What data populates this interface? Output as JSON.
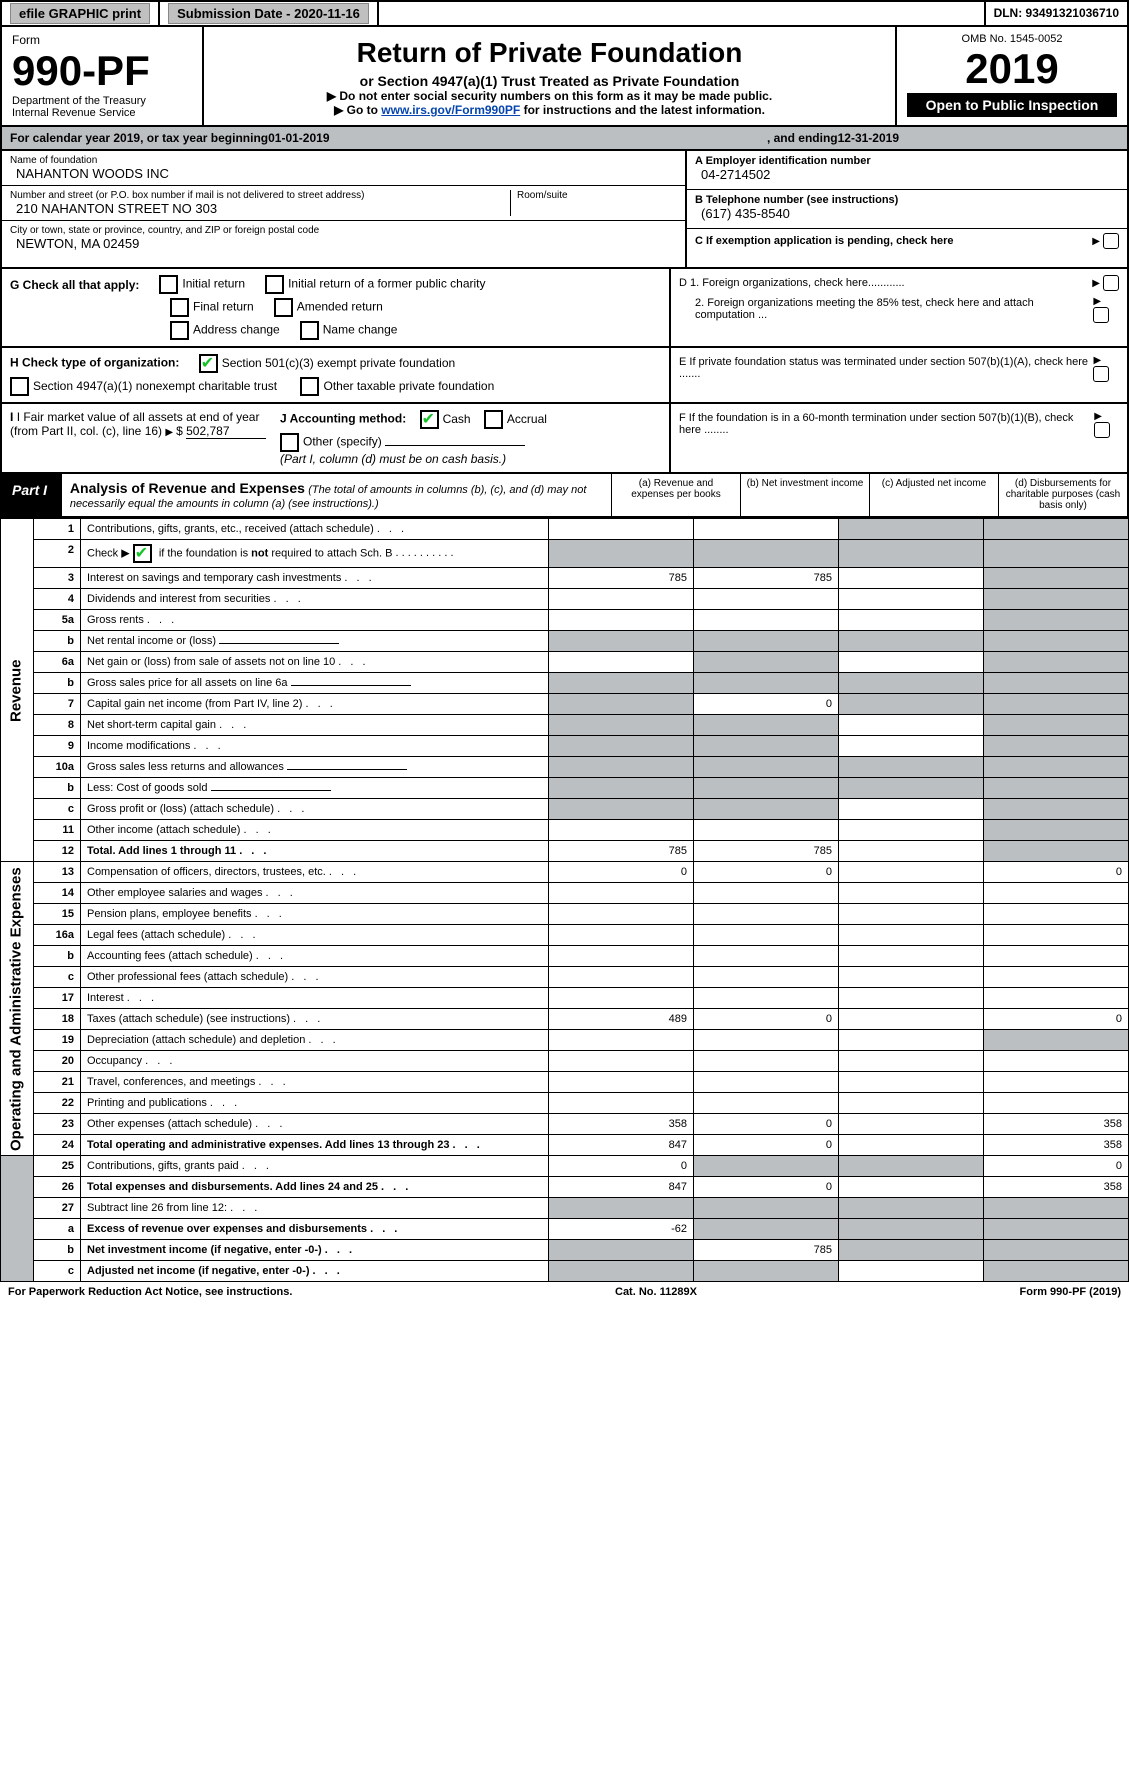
{
  "top_bar": {
    "efile": "efile GRAPHIC print",
    "submission": "Submission Date - 2020-11-16",
    "dln": "DLN: 93491321036710"
  },
  "header": {
    "form_label": "Form",
    "form_no": "990-PF",
    "dept": "Department of the Treasury",
    "irs": "Internal Revenue Service",
    "title": "Return of Private Foundation",
    "subtitle": "or Section 4947(a)(1) Trust Treated as Private Foundation",
    "note1": "▶ Do not enter social security numbers on this form as it may be made public.",
    "note2_prefix": "▶ Go to ",
    "note2_link": "www.irs.gov/Form990PF",
    "note2_suffix": " for instructions and the latest information.",
    "omb": "OMB No. 1545-0052",
    "year": "2019",
    "open_pub": "Open to Public Inspection"
  },
  "cal_year": {
    "prefix": "For calendar year 2019, or tax year beginning ",
    "begin": "01-01-2019",
    "mid": " , and ending ",
    "end": "12-31-2019"
  },
  "id": {
    "name_lbl": "Name of foundation",
    "name": "NAHANTON WOODS INC",
    "addr_lbl": "Number and street (or P.O. box number if mail is not delivered to street address)",
    "room_lbl": "Room/suite",
    "addr": "210 NAHANTON STREET NO 303",
    "city_lbl": "City or town, state or province, country, and ZIP or foreign postal code",
    "city": "NEWTON, MA  02459",
    "a_lbl": "A Employer identification number",
    "a_val": "04-2714502",
    "b_lbl": "B Telephone number (see instructions)",
    "b_val": "(617) 435-8540",
    "c_lbl": "C If exemption application is pending, check here"
  },
  "checks": {
    "g_lbl": "G Check all that apply:",
    "g_opts": [
      "Initial return",
      "Initial return of a former public charity",
      "Final return",
      "Amended return",
      "Address change",
      "Name change"
    ],
    "h_lbl": "H Check type of organization:",
    "h_opts": [
      "Section 501(c)(3) exempt private foundation",
      "Section 4947(a)(1) nonexempt charitable trust",
      "Other taxable private foundation"
    ],
    "i_lbl": "I Fair market value of all assets at end of year (from Part II, col. (c), line 16)",
    "i_val": "502,787",
    "j_lbl": "J Accounting method:",
    "j_opts": [
      "Cash",
      "Accrual",
      "Other (specify)"
    ],
    "j_note": "(Part I, column (d) must be on cash basis.)",
    "d1": "D 1. Foreign organizations, check here............",
    "d2": "2. Foreign organizations meeting the 85% test, check here and attach computation ...",
    "e": "E  If private foundation status was terminated under section 507(b)(1)(A), check here .......",
    "f": "F  If the foundation is in a 60-month termination under section 507(b)(1)(B), check here ........"
  },
  "part1": {
    "title": "Part I",
    "heading": "Analysis of Revenue and Expenses",
    "heading_note": "(The total of amounts in columns (b), (c), and (d) may not necessarily equal the amounts in column (a) (see instructions).)",
    "col_a": "(a)  Revenue and expenses per books",
    "col_b": "(b)  Net investment income",
    "col_c": "(c)  Adjusted net income",
    "col_d": "(d)  Disbursements for charitable purposes (cash basis only)",
    "side_rev": "Revenue",
    "side_exp": "Operating and Administrative Expenses"
  },
  "rows": [
    {
      "n": "1",
      "d": "Contributions, gifts, grants, etc., received (attach schedule)",
      "a": "",
      "b": "",
      "c": "g",
      "dd": "g"
    },
    {
      "n": "2",
      "d": "Check ▶ ☑ if the foundation is not required to attach Sch. B",
      "a": "g",
      "b": "g",
      "c": "g",
      "dd": "g",
      "special": "check"
    },
    {
      "n": "3",
      "d": "Interest on savings and temporary cash investments",
      "a": "785",
      "b": "785",
      "c": "",
      "dd": "g"
    },
    {
      "n": "4",
      "d": "Dividends and interest from securities",
      "a": "",
      "b": "",
      "c": "",
      "dd": "g"
    },
    {
      "n": "5a",
      "d": "Gross rents",
      "a": "",
      "b": "",
      "c": "",
      "dd": "g"
    },
    {
      "n": "b",
      "d": "Net rental income or (loss)",
      "a": "g",
      "b": "g",
      "c": "g",
      "dd": "g",
      "special": "inline"
    },
    {
      "n": "6a",
      "d": "Net gain or (loss) from sale of assets not on line 10",
      "a": "",
      "b": "g",
      "c": "",
      "dd": "g"
    },
    {
      "n": "b",
      "d": "Gross sales price for all assets on line 6a",
      "a": "g",
      "b": "g",
      "c": "g",
      "dd": "g",
      "special": "inline"
    },
    {
      "n": "7",
      "d": "Capital gain net income (from Part IV, line 2)",
      "a": "g",
      "b": "0",
      "c": "g",
      "dd": "g"
    },
    {
      "n": "8",
      "d": "Net short-term capital gain",
      "a": "g",
      "b": "g",
      "c": "",
      "dd": "g"
    },
    {
      "n": "9",
      "d": "Income modifications",
      "a": "g",
      "b": "g",
      "c": "",
      "dd": "g"
    },
    {
      "n": "10a",
      "d": "Gross sales less returns and allowances",
      "a": "g",
      "b": "g",
      "c": "g",
      "dd": "g",
      "special": "inline"
    },
    {
      "n": "b",
      "d": "Less: Cost of goods sold",
      "a": "g",
      "b": "g",
      "c": "g",
      "dd": "g",
      "special": "inline"
    },
    {
      "n": "c",
      "d": "Gross profit or (loss) (attach schedule)",
      "a": "g",
      "b": "g",
      "c": "",
      "dd": "g"
    },
    {
      "n": "11",
      "d": "Other income (attach schedule)",
      "a": "",
      "b": "",
      "c": "",
      "dd": "g"
    },
    {
      "n": "12",
      "d": "Total. Add lines 1 through 11",
      "a": "785",
      "b": "785",
      "c": "",
      "dd": "g",
      "bold": true
    },
    {
      "n": "13",
      "d": "Compensation of officers, directors, trustees, etc.",
      "a": "0",
      "b": "0",
      "c": "",
      "dd": "0"
    },
    {
      "n": "14",
      "d": "Other employee salaries and wages",
      "a": "",
      "b": "",
      "c": "",
      "dd": ""
    },
    {
      "n": "15",
      "d": "Pension plans, employee benefits",
      "a": "",
      "b": "",
      "c": "",
      "dd": ""
    },
    {
      "n": "16a",
      "d": "Legal fees (attach schedule)",
      "a": "",
      "b": "",
      "c": "",
      "dd": ""
    },
    {
      "n": "b",
      "d": "Accounting fees (attach schedule)",
      "a": "",
      "b": "",
      "c": "",
      "dd": ""
    },
    {
      "n": "c",
      "d": "Other professional fees (attach schedule)",
      "a": "",
      "b": "",
      "c": "",
      "dd": ""
    },
    {
      "n": "17",
      "d": "Interest",
      "a": "",
      "b": "",
      "c": "",
      "dd": ""
    },
    {
      "n": "18",
      "d": "Taxes (attach schedule) (see instructions)",
      "a": "489",
      "b": "0",
      "c": "",
      "dd": "0"
    },
    {
      "n": "19",
      "d": "Depreciation (attach schedule) and depletion",
      "a": "",
      "b": "",
      "c": "",
      "dd": "g"
    },
    {
      "n": "20",
      "d": "Occupancy",
      "a": "",
      "b": "",
      "c": "",
      "dd": ""
    },
    {
      "n": "21",
      "d": "Travel, conferences, and meetings",
      "a": "",
      "b": "",
      "c": "",
      "dd": ""
    },
    {
      "n": "22",
      "d": "Printing and publications",
      "a": "",
      "b": "",
      "c": "",
      "dd": ""
    },
    {
      "n": "23",
      "d": "Other expenses (attach schedule)",
      "a": "358",
      "b": "0",
      "c": "",
      "dd": "358"
    },
    {
      "n": "24",
      "d": "Total operating and administrative expenses. Add lines 13 through 23",
      "a": "847",
      "b": "0",
      "c": "",
      "dd": "358",
      "bold": true
    },
    {
      "n": "25",
      "d": "Contributions, gifts, grants paid",
      "a": "0",
      "b": "g",
      "c": "g",
      "dd": "0"
    },
    {
      "n": "26",
      "d": "Total expenses and disbursements. Add lines 24 and 25",
      "a": "847",
      "b": "0",
      "c": "",
      "dd": "358",
      "bold": true
    },
    {
      "n": "27",
      "d": "Subtract line 26 from line 12:",
      "a": "g",
      "b": "g",
      "c": "g",
      "dd": "g"
    },
    {
      "n": "a",
      "d": "Excess of revenue over expenses and disbursements",
      "a": "-62",
      "b": "g",
      "c": "g",
      "dd": "g",
      "bold": true
    },
    {
      "n": "b",
      "d": "Net investment income (if negative, enter -0-)",
      "a": "g",
      "b": "785",
      "c": "g",
      "dd": "g",
      "bold": true
    },
    {
      "n": "c",
      "d": "Adjusted net income (if negative, enter -0-)",
      "a": "g",
      "b": "g",
      "c": "",
      "dd": "g",
      "bold": true
    }
  ],
  "footer": {
    "left": "For Paperwork Reduction Act Notice, see instructions.",
    "mid": "Cat. No. 11289X",
    "right": "Form 990-PF (2019)"
  },
  "colors": {
    "grey": "#bcbfc2",
    "green": "#14c326",
    "link": "#0645ad"
  }
}
